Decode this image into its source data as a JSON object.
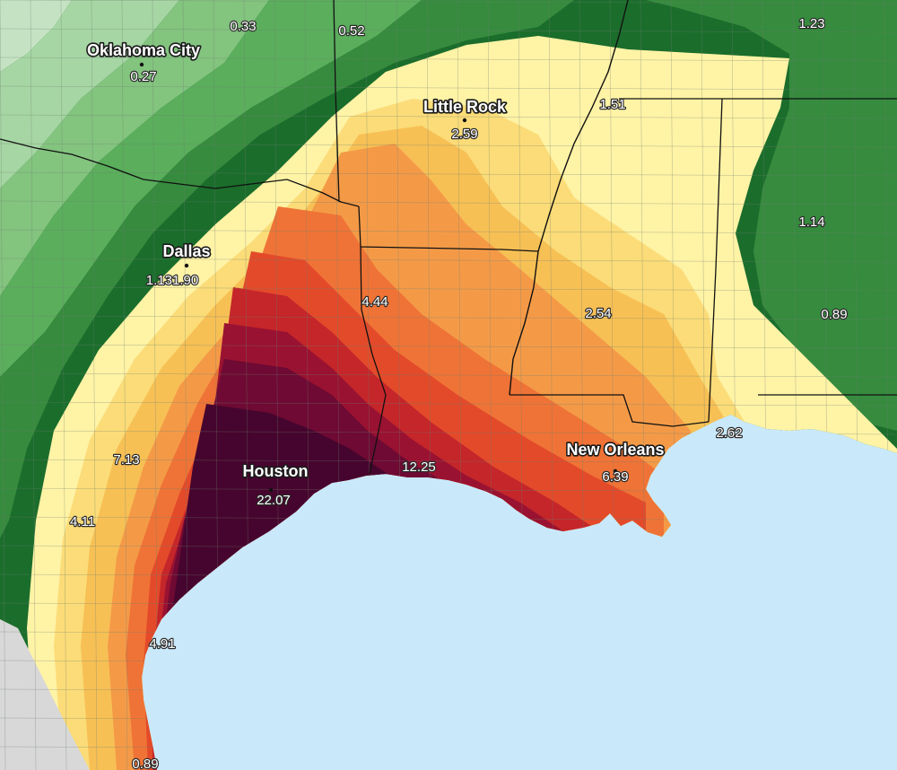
{
  "colors": {
    "water": "#c9e9fb",
    "band_0": "#c5e3c3",
    "band_1": "#a6d6a4",
    "band_2": "#83c47f",
    "band_3": "#5aae5c",
    "band_4": "#368b3e",
    "band_5": "#1b6d2c",
    "band_6": "#fff3a6",
    "band_7": "#fbdc78",
    "band_8": "#f7c055",
    "band_9": "#f49a47",
    "band_10": "#ef7336",
    "band_11": "#e34a2a",
    "band_12": "#c4262a",
    "band_13": "#9a1231",
    "band_14": "#6e0a33",
    "band_15": "#46052e",
    "mexico": "#d8d8d8",
    "county_lines": "#6f7f6f",
    "state_lines": "#111111"
  },
  "cities": [
    {
      "name": "Oklahoma City",
      "value": "0.27"
    },
    {
      "name": "Little Rock",
      "value": "2.59"
    },
    {
      "name": "Dallas",
      "value": "1.131.90"
    },
    {
      "name": "Houston",
      "value": "22.07"
    },
    {
      "name": "New Orleans",
      "value": "6.39"
    }
  ],
  "values": [
    "0.33",
    "0.52",
    "1.23",
    "1.51",
    "1.14",
    "0.89",
    "4.44",
    "2.54",
    "7.13",
    "12.25",
    "2.62",
    "4.11",
    "4.91",
    "0.89"
  ]
}
